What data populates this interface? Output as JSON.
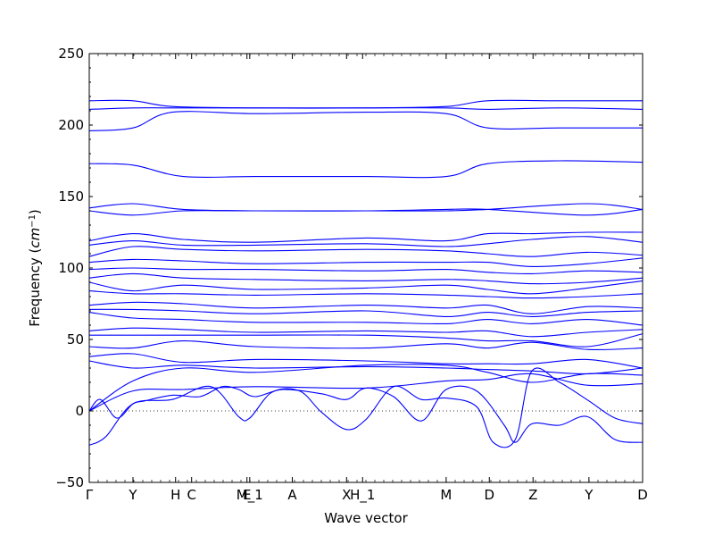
{
  "chart_data": {
    "type": "line",
    "title": "",
    "xlabel": "Wave vector",
    "ylabel": "Frequency",
    "ylabel_unit": "cm",
    "ylabel_unit_exp": "−1",
    "ylim": [
      -50,
      250
    ],
    "yticks": [
      250,
      200,
      150,
      100,
      50,
      0,
      -50
    ],
    "ytick_labels": [
      "250",
      "200",
      "150",
      "100",
      "50",
      "0",
      "−50"
    ],
    "xlim": [
      0,
      1
    ],
    "xticks": [
      {
        "x": 0.0,
        "label": "Γ"
      },
      {
        "x": 0.079,
        "label": "Y"
      },
      {
        "x": 0.156,
        "label": "H"
      },
      {
        "x": 0.185,
        "label": "C"
      },
      {
        "x": 0.285,
        "label": "E"
      },
      {
        "x": 0.29,
        "label": "M_1"
      },
      {
        "x": 0.367,
        "label": "A"
      },
      {
        "x": 0.465,
        "label": "X"
      },
      {
        "x": 0.494,
        "label": "H_1"
      },
      {
        "x": 0.645,
        "label": "M"
      },
      {
        "x": 0.723,
        "label": "D"
      },
      {
        "x": 0.802,
        "label": "Z"
      },
      {
        "x": 0.903,
        "label": "Y"
      },
      {
        "x": 1.0,
        "label": "D"
      }
    ],
    "zero_line": true,
    "line_color": "#0000ff",
    "bands": [
      {
        "x": [
          0,
          0.079,
          0.15,
          0.3,
          0.5,
          0.645,
          0.72,
          0.85,
          1
        ],
        "y": [
          217,
          217,
          213,
          212,
          212,
          213,
          217,
          217,
          217
        ]
      },
      {
        "x": [
          0,
          0.079,
          0.15,
          0.3,
          0.5,
          0.645,
          0.72,
          0.85,
          1
        ],
        "y": [
          211,
          212,
          212,
          212,
          212,
          212,
          211,
          212,
          211
        ]
      },
      {
        "x": [
          0,
          0.079,
          0.15,
          0.3,
          0.5,
          0.645,
          0.72,
          0.85,
          1
        ],
        "y": [
          196,
          198,
          209,
          208,
          209,
          208,
          198,
          198,
          198
        ]
      },
      {
        "x": [
          0,
          0.079,
          0.17,
          0.3,
          0.5,
          0.645,
          0.72,
          0.85,
          1
        ],
        "y": [
          173,
          172,
          164,
          164,
          164,
          164,
          173,
          175,
          174
        ]
      },
      {
        "x": [
          0,
          0.079,
          0.17,
          0.3,
          0.5,
          0.645,
          0.72,
          0.9,
          1
        ],
        "y": [
          142,
          145,
          141,
          140,
          140,
          140,
          141,
          145,
          141
        ]
      },
      {
        "x": [
          0,
          0.079,
          0.17,
          0.3,
          0.5,
          0.645,
          0.72,
          0.9,
          1
        ],
        "y": [
          140,
          137,
          140,
          140,
          140,
          141,
          141,
          137,
          141
        ]
      },
      {
        "x": [
          0,
          0.079,
          0.17,
          0.3,
          0.5,
          0.645,
          0.72,
          0.8,
          0.9,
          1
        ],
        "y": [
          119,
          124,
          120,
          118,
          121,
          119,
          124,
          124,
          125,
          125
        ]
      },
      {
        "x": [
          0,
          0.079,
          0.17,
          0.3,
          0.5,
          0.645,
          0.72,
          0.8,
          0.9,
          1
        ],
        "y": [
          116,
          119,
          116,
          116,
          117,
          115,
          117,
          120,
          122,
          118
        ]
      },
      {
        "x": [
          0,
          0.079,
          0.17,
          0.3,
          0.5,
          0.645,
          0.72,
          0.8,
          0.9,
          1
        ],
        "y": [
          108,
          115,
          113,
          112,
          113,
          112,
          110,
          108,
          111,
          109
        ]
      },
      {
        "x": [
          0,
          0.079,
          0.17,
          0.3,
          0.5,
          0.645,
          0.72,
          0.8,
          0.9,
          1
        ],
        "y": [
          104,
          106,
          105,
          103,
          104,
          104,
          104,
          101,
          103,
          107
        ]
      },
      {
        "x": [
          0,
          0.079,
          0.17,
          0.3,
          0.5,
          0.645,
          0.72,
          0.8,
          0.9,
          1
        ],
        "y": [
          99,
          100,
          99,
          99,
          98,
          99,
          97,
          96,
          98,
          97
        ]
      },
      {
        "x": [
          0,
          0.079,
          0.17,
          0.3,
          0.5,
          0.645,
          0.72,
          0.8,
          0.9,
          1
        ],
        "y": [
          93,
          96,
          93,
          92,
          91,
          92,
          91,
          89,
          90,
          93
        ]
      },
      {
        "x": [
          0,
          0.079,
          0.17,
          0.3,
          0.5,
          0.645,
          0.72,
          0.8,
          0.9,
          1
        ],
        "y": [
          90,
          84,
          88,
          85,
          86,
          88,
          85,
          82,
          86,
          91
        ]
      },
      {
        "x": [
          0,
          0.079,
          0.17,
          0.3,
          0.5,
          0.645,
          0.72,
          0.8,
          0.9,
          1
        ],
        "y": [
          84,
          82,
          82,
          81,
          82,
          81,
          80,
          79,
          80,
          82
        ]
      },
      {
        "x": [
          0,
          0.079,
          0.17,
          0.3,
          0.5,
          0.645,
          0.72,
          0.8,
          0.9,
          1
        ],
        "y": [
          74,
          76,
          75,
          72,
          74,
          72,
          74,
          68,
          73,
          72
        ]
      },
      {
        "x": [
          0,
          0.079,
          0.17,
          0.3,
          0.5,
          0.645,
          0.72,
          0.8,
          0.9,
          1
        ],
        "y": [
          71,
          71,
          70,
          68,
          70,
          66,
          69,
          66,
          69,
          70
        ]
      },
      {
        "x": [
          0,
          0.079,
          0.17,
          0.3,
          0.5,
          0.645,
          0.72,
          0.8,
          0.9,
          1
        ],
        "y": [
          69,
          65,
          64,
          62,
          62,
          61,
          64,
          61,
          64,
          60
        ]
      },
      {
        "x": [
          0,
          0.079,
          0.17,
          0.3,
          0.5,
          0.645,
          0.72,
          0.8,
          0.9,
          1
        ],
        "y": [
          56,
          58,
          57,
          55,
          56,
          55,
          56,
          52,
          55,
          57
        ]
      },
      {
        "x": [
          0,
          0.079,
          0.17,
          0.3,
          0.5,
          0.645,
          0.72,
          0.8,
          0.9,
          1
        ],
        "y": [
          53,
          53,
          53,
          53,
          53,
          51,
          49,
          49,
          45,
          54
        ]
      },
      {
        "x": [
          0,
          0.079,
          0.17,
          0.3,
          0.5,
          0.645,
          0.72,
          0.8,
          0.9,
          1
        ],
        "y": [
          45,
          44,
          49,
          45,
          44,
          47,
          44,
          48,
          43,
          44
        ]
      },
      {
        "x": [
          0,
          0.079,
          0.17,
          0.3,
          0.5,
          0.645,
          0.72,
          0.8,
          0.9,
          1
        ],
        "y": [
          38,
          40,
          34,
          36,
          35,
          33,
          33,
          33,
          36,
          30
        ]
      },
      {
        "x": [
          0,
          0.079,
          0.17,
          0.3,
          0.5,
          0.645,
          0.72,
          0.8,
          0.9,
          1
        ],
        "y": [
          35,
          30,
          32,
          30,
          31,
          30,
          29,
          28,
          26,
          30
        ]
      },
      {
        "x": [
          0,
          0.079,
          0.17,
          0.3,
          0.5,
          0.645,
          0.72,
          0.8,
          0.9,
          1
        ],
        "y": [
          0,
          21,
          30,
          27,
          32,
          32,
          27,
          20,
          26,
          25
        ]
      },
      {
        "x": [
          0,
          0.079,
          0.17,
          0.3,
          0.5,
          0.645,
          0.72,
          0.8,
          0.9,
          1
        ],
        "y": [
          0,
          14,
          15,
          17,
          16,
          21,
          22,
          26,
          18,
          19
        ]
      },
      {
        "x": [
          0,
          0.03,
          0.079,
          0.15,
          0.22,
          0.27,
          0.29,
          0.33,
          0.38,
          0.42,
          0.465,
          0.5,
          0.55,
          0.6,
          0.645,
          0.7,
          0.73,
          0.77,
          0.8,
          0.85,
          0.903,
          0.95,
          1
        ],
        "y": [
          -24,
          -18,
          5,
          8,
          17,
          -4,
          -5,
          13,
          14,
          -1,
          -13,
          -6,
          17,
          8,
          9,
          3,
          -22,
          -20,
          28,
          20,
          7,
          -5,
          -9
        ]
      },
      {
        "x": [
          0,
          0.02,
          0.05,
          0.079,
          0.1,
          0.15,
          0.2,
          0.24,
          0.27,
          0.3,
          0.35,
          0.42,
          0.465,
          0.5,
          0.55,
          0.6,
          0.645,
          0.7,
          0.75,
          0.77,
          0.8,
          0.85,
          0.9,
          0.95,
          1
        ],
        "y": [
          0,
          8,
          -5,
          5,
          7,
          11,
          10,
          17,
          15,
          10,
          15,
          12,
          8,
          16,
          10,
          -7,
          15,
          14,
          -10,
          -22,
          -9,
          -10,
          -4,
          -20,
          -22
        ]
      }
    ]
  }
}
